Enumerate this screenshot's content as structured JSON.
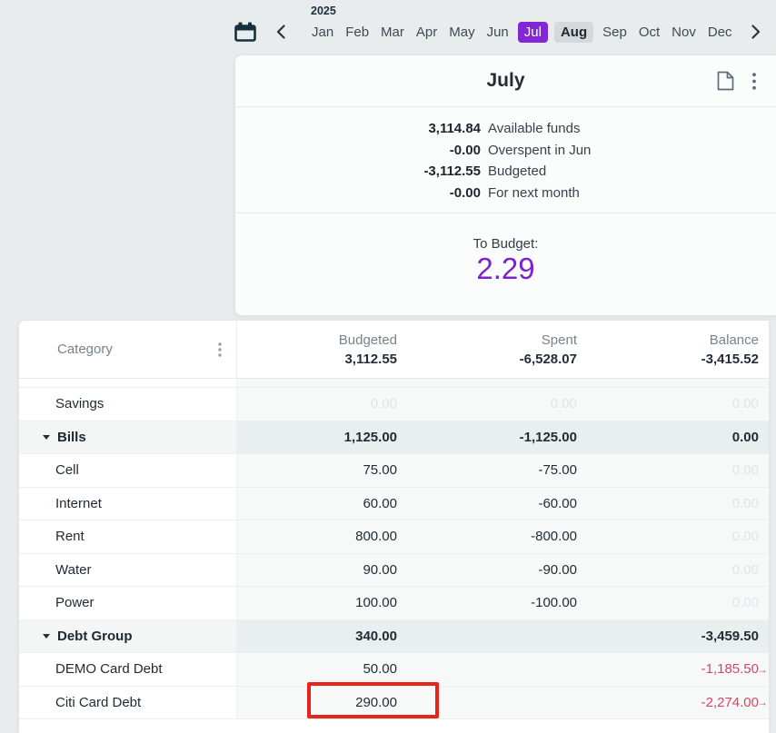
{
  "year": "2025",
  "month_nav": {
    "months": [
      {
        "label": "Jan",
        "state": "normal"
      },
      {
        "label": "Feb",
        "state": "normal"
      },
      {
        "label": "Mar",
        "state": "normal"
      },
      {
        "label": "Apr",
        "state": "normal"
      },
      {
        "label": "May",
        "state": "normal"
      },
      {
        "label": "Jun",
        "state": "normal"
      },
      {
        "label": "Jul",
        "state": "selected"
      },
      {
        "label": "Aug",
        "state": "next"
      },
      {
        "label": "Sep",
        "state": "normal"
      },
      {
        "label": "Oct",
        "state": "normal"
      },
      {
        "label": "Nov",
        "state": "normal"
      },
      {
        "label": "Dec",
        "state": "normal"
      }
    ]
  },
  "panel": {
    "title": "July",
    "summary": [
      {
        "value": "3,114.84",
        "label": "Available funds"
      },
      {
        "value": "-0.00",
        "label": "Overspent in Jun"
      },
      {
        "value": "-3,112.55",
        "label": "Budgeted"
      },
      {
        "value": "-0.00",
        "label": "For next month"
      }
    ],
    "to_budget_label": "To Budget:",
    "to_budget_value": "2.29"
  },
  "table": {
    "category_header": "Category",
    "columns": [
      {
        "label": "Budgeted",
        "total": "3,112.55"
      },
      {
        "label": "Spent",
        "total": "-6,528.07"
      },
      {
        "label": "Balance",
        "total": "-3,415.52"
      }
    ],
    "rows": [
      {
        "name": "Savings",
        "type": "item",
        "cells": [
          {
            "t": "0.00",
            "s": "faint"
          },
          {
            "t": "0.00",
            "s": "faint"
          },
          {
            "t": "0.00",
            "s": "faint"
          }
        ]
      },
      {
        "name": "Bills",
        "type": "group",
        "cells": [
          {
            "t": "1,125.00",
            "s": "bold"
          },
          {
            "t": "-1,125.00",
            "s": "bold"
          },
          {
            "t": "0.00",
            "s": "bold"
          }
        ]
      },
      {
        "name": "Cell",
        "type": "item",
        "cells": [
          {
            "t": "75.00",
            "s": ""
          },
          {
            "t": "-75.00",
            "s": ""
          },
          {
            "t": "0.00",
            "s": "faint"
          }
        ]
      },
      {
        "name": "Internet",
        "type": "item",
        "cells": [
          {
            "t": "60.00",
            "s": ""
          },
          {
            "t": "-60.00",
            "s": ""
          },
          {
            "t": "0.00",
            "s": "faint"
          }
        ]
      },
      {
        "name": "Rent",
        "type": "item",
        "cells": [
          {
            "t": "800.00",
            "s": ""
          },
          {
            "t": "-800.00",
            "s": ""
          },
          {
            "t": "0.00",
            "s": "faint"
          }
        ]
      },
      {
        "name": "Water",
        "type": "item",
        "cells": [
          {
            "t": "90.00",
            "s": ""
          },
          {
            "t": "-90.00",
            "s": ""
          },
          {
            "t": "0.00",
            "s": "faint"
          }
        ]
      },
      {
        "name": "Power",
        "type": "item",
        "cells": [
          {
            "t": "100.00",
            "s": ""
          },
          {
            "t": "-100.00",
            "s": ""
          },
          {
            "t": "0.00",
            "s": "faint"
          }
        ]
      },
      {
        "name": "Debt Group",
        "type": "group",
        "cells": [
          {
            "t": "340.00",
            "s": "bold"
          },
          {
            "t": "",
            "s": ""
          },
          {
            "t": "-3,459.50",
            "s": "bold"
          }
        ]
      },
      {
        "name": "DEMO Card Debt",
        "type": "item",
        "cells": [
          {
            "t": "50.00",
            "s": ""
          },
          {
            "t": "",
            "s": ""
          },
          {
            "t": "-1,185.50",
            "s": "red",
            "arrow": true
          }
        ]
      },
      {
        "name": "Citi Card Debt",
        "type": "item",
        "cells": [
          {
            "t": "290.00",
            "s": "",
            "boxed": true
          },
          {
            "t": "",
            "s": ""
          },
          {
            "t": "-2,274.00",
            "s": "red",
            "arrow": true
          }
        ]
      }
    ]
  },
  "annotations": {
    "red_arrow": "points at To Budget value 2.29",
    "red_box": "highlights Citi Card Debt budgeted amount 290.00"
  },
  "icons": {
    "calendar": "calendar-icon",
    "prev": "chevron-left-icon",
    "next": "chevron-right-icon",
    "notes": "document-icon",
    "menu": "kebab-menu-icon",
    "goto": "→"
  },
  "colors": {
    "accent_purple": "#8227d6",
    "to_budget_purple": "#7d21d3",
    "negative_red": "#d64561",
    "annotation_red": "#e8231c",
    "page_background": "#e9eced",
    "next_month_badge": "#d5d9db"
  }
}
